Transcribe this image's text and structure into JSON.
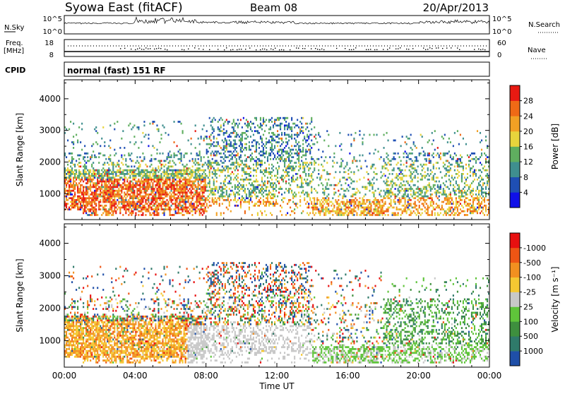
{
  "header": {
    "station": "Syowa East (fitACF)",
    "beam": "Beam 08",
    "date": "20/Apr/2013"
  },
  "strips": {
    "nsky_label": "N.Sky",
    "nsearch_label": "N.Search",
    "noise_ticks": [
      "10^5",
      "10^0"
    ],
    "freq_label": "Freq.",
    "freq_unit": "[MHz]",
    "freq_ticks": [
      "18",
      "8"
    ],
    "nave_label": "Nave",
    "nave_ticks": [
      "60",
      "0"
    ],
    "cpid_label": "CPID",
    "cpid_text": "normal (fast) 151 RF"
  },
  "chart_data": [
    {
      "type": "heatmap",
      "name": "power",
      "ylabel": "Slant Range [km]",
      "ylim": [
        180,
        4600
      ],
      "yticks": [
        1000,
        2000,
        3000,
        4000
      ],
      "xlim": [
        0,
        24
      ],
      "xticks": [
        "00:00",
        "04:00",
        "08:00",
        "12:00",
        "16:00",
        "20:00",
        "00:00"
      ],
      "colorbar": {
        "label": "Power [dB]",
        "ticks": [
          "4",
          "8",
          "12",
          "16",
          "20",
          "24",
          "28"
        ],
        "colors": [
          "#1010e8",
          "#1f4fb4",
          "#3f8f8f",
          "#5fae5f",
          "#e8d43c",
          "#f2a024",
          "#ef6a16",
          "#e81a12"
        ]
      }
    },
    {
      "type": "heatmap",
      "name": "velocity",
      "ylabel": "Slant Range [km]",
      "ylim": [
        180,
        4600
      ],
      "yticks": [
        1000,
        2000,
        3000,
        4000
      ],
      "xlim": [
        0,
        24
      ],
      "xticks": [
        "00:00",
        "04:00",
        "08:00",
        "12:00",
        "16:00",
        "20:00",
        "00:00"
      ],
      "xlabel": "Time UT",
      "colorbar": {
        "label": "Velocity [m s⁻¹]",
        "ticks": [
          "1000",
          "500",
          "100",
          "25",
          "-25",
          "-100",
          "-500",
          "-1000"
        ],
        "colors": [
          "#1f4fa8",
          "#2f7a6a",
          "#3e8f3e",
          "#5fc43a",
          "#c8c8c8",
          "#f5c832",
          "#f29020",
          "#ee5514",
          "#e81010"
        ]
      }
    }
  ]
}
